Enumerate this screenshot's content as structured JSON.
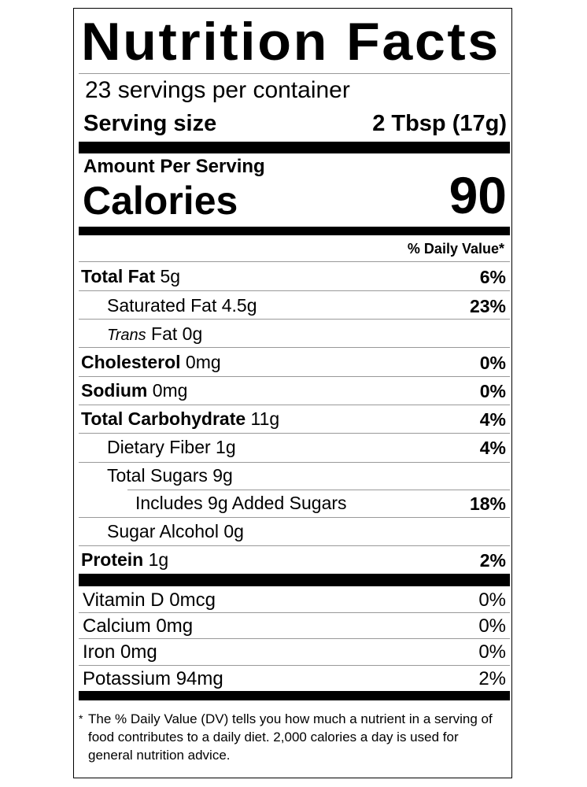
{
  "title": "Nutrition Facts",
  "servings_per_container": "23 servings per container",
  "serving_size": {
    "label": "Serving size",
    "value": "2 Tbsp (17g)"
  },
  "amount_per_serving": "Amount Per Serving",
  "calories": {
    "label": "Calories",
    "value": "90"
  },
  "daily_value_header": "% Daily Value*",
  "nutrients": [
    {
      "name": "Total Fat",
      "amount": "5g",
      "dv": "6%"
    },
    {
      "name": "Saturated Fat",
      "amount": "4.5g",
      "dv": "23%"
    },
    {
      "name_italic": "Trans",
      "name": "Fat",
      "amount": "0g",
      "dv": ""
    },
    {
      "name": "Cholesterol",
      "amount": "0mg",
      "dv": "0%"
    },
    {
      "name": "Sodium",
      "amount": "0mg",
      "dv": "0%"
    },
    {
      "name": "Total Carbohydrate",
      "amount": "11g",
      "dv": "4%"
    },
    {
      "name": "Dietary Fiber",
      "amount": "1g",
      "dv": "4%"
    },
    {
      "name": "Total Sugars",
      "amount": "9g",
      "dv": ""
    },
    {
      "name": "Includes 9g Added Sugars",
      "amount": "",
      "dv": "18%"
    },
    {
      "name": "Sugar Alcohol",
      "amount": "0g",
      "dv": ""
    },
    {
      "name": "Protein",
      "amount": "1g",
      "dv": "2%"
    }
  ],
  "vitamins": [
    {
      "label": "Vitamin D 0mcg",
      "dv": "0%"
    },
    {
      "label": "Calcium 0mg",
      "dv": "0%"
    },
    {
      "label": "Iron 0mg",
      "dv": "0%"
    },
    {
      "label": "Potassium 94mg",
      "dv": "2%"
    }
  ],
  "footnote": {
    "star": "*",
    "text": "The % Daily Value (DV) tells you how much a nutrient in a serving of food contributes to a daily diet. 2,000 calories a day is used for general nutrition advice."
  }
}
